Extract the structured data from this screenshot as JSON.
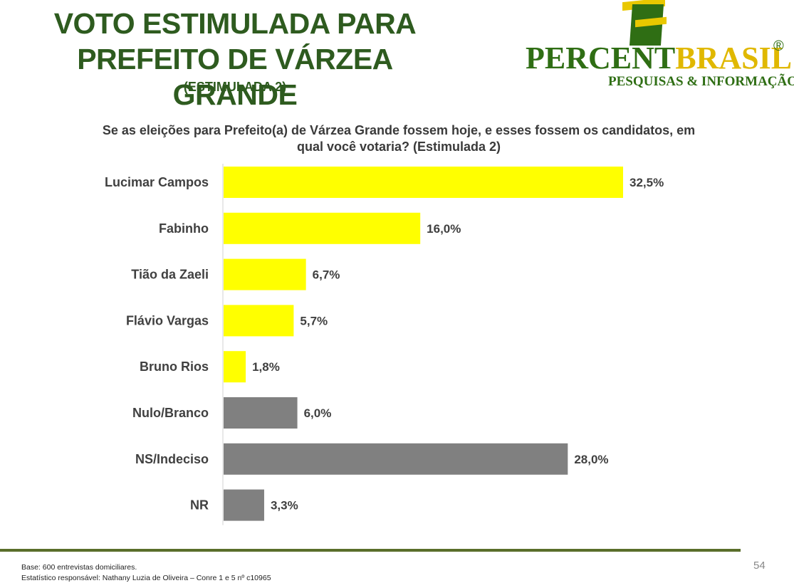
{
  "title_lines": [
    "VOTO ESTIMULADA PARA",
    "PREFEITO DE VÁRZEA GRANDE"
  ],
  "subtitle": "(ESTIMULADA 2)",
  "logo": {
    "word1": "PERCENT",
    "word2": "BRASIL",
    "reg": "®",
    "tagline": "PESQUISAS & INFORMAÇÃO"
  },
  "question_lines": [
    "Se as eleições para Prefeito(a) de Várzea Grande fossem hoje, e esses fossem os candidatos, em",
    "qual você votaria? (Estimulada 2)"
  ],
  "chart_data": {
    "type": "bar",
    "orientation": "horizontal",
    "categories": [
      "Lucimar Campos",
      "Fabinho",
      "Tião da Zaeli",
      "Flávio Vargas",
      "Bruno Rios",
      "Nulo/Branco",
      "NS/Indeciso",
      "NR"
    ],
    "values": [
      32.5,
      16.0,
      6.7,
      5.7,
      1.8,
      6.0,
      28.0,
      3.3
    ],
    "labels": [
      "32,5%",
      "16,0%",
      "6,7%",
      "5,7%",
      "1,8%",
      "6,0%",
      "28,0%",
      "3,3%"
    ],
    "colors": [
      "#ffff00",
      "#ffff00",
      "#ffff00",
      "#ffff00",
      "#ffff00",
      "#808080",
      "#808080",
      "#808080"
    ],
    "xlim": [
      0,
      32.5
    ]
  },
  "footnotes": [
    "Base: 600 entrevistas domiciliares.",
    "Estatístico responsável: Nathany Luzia de Oliveira – Conre 1 e 5 nº c10965"
  ],
  "page_number": "54",
  "colors": {
    "title": "#2e5b1f",
    "footer_line": "#5a6e2a"
  }
}
